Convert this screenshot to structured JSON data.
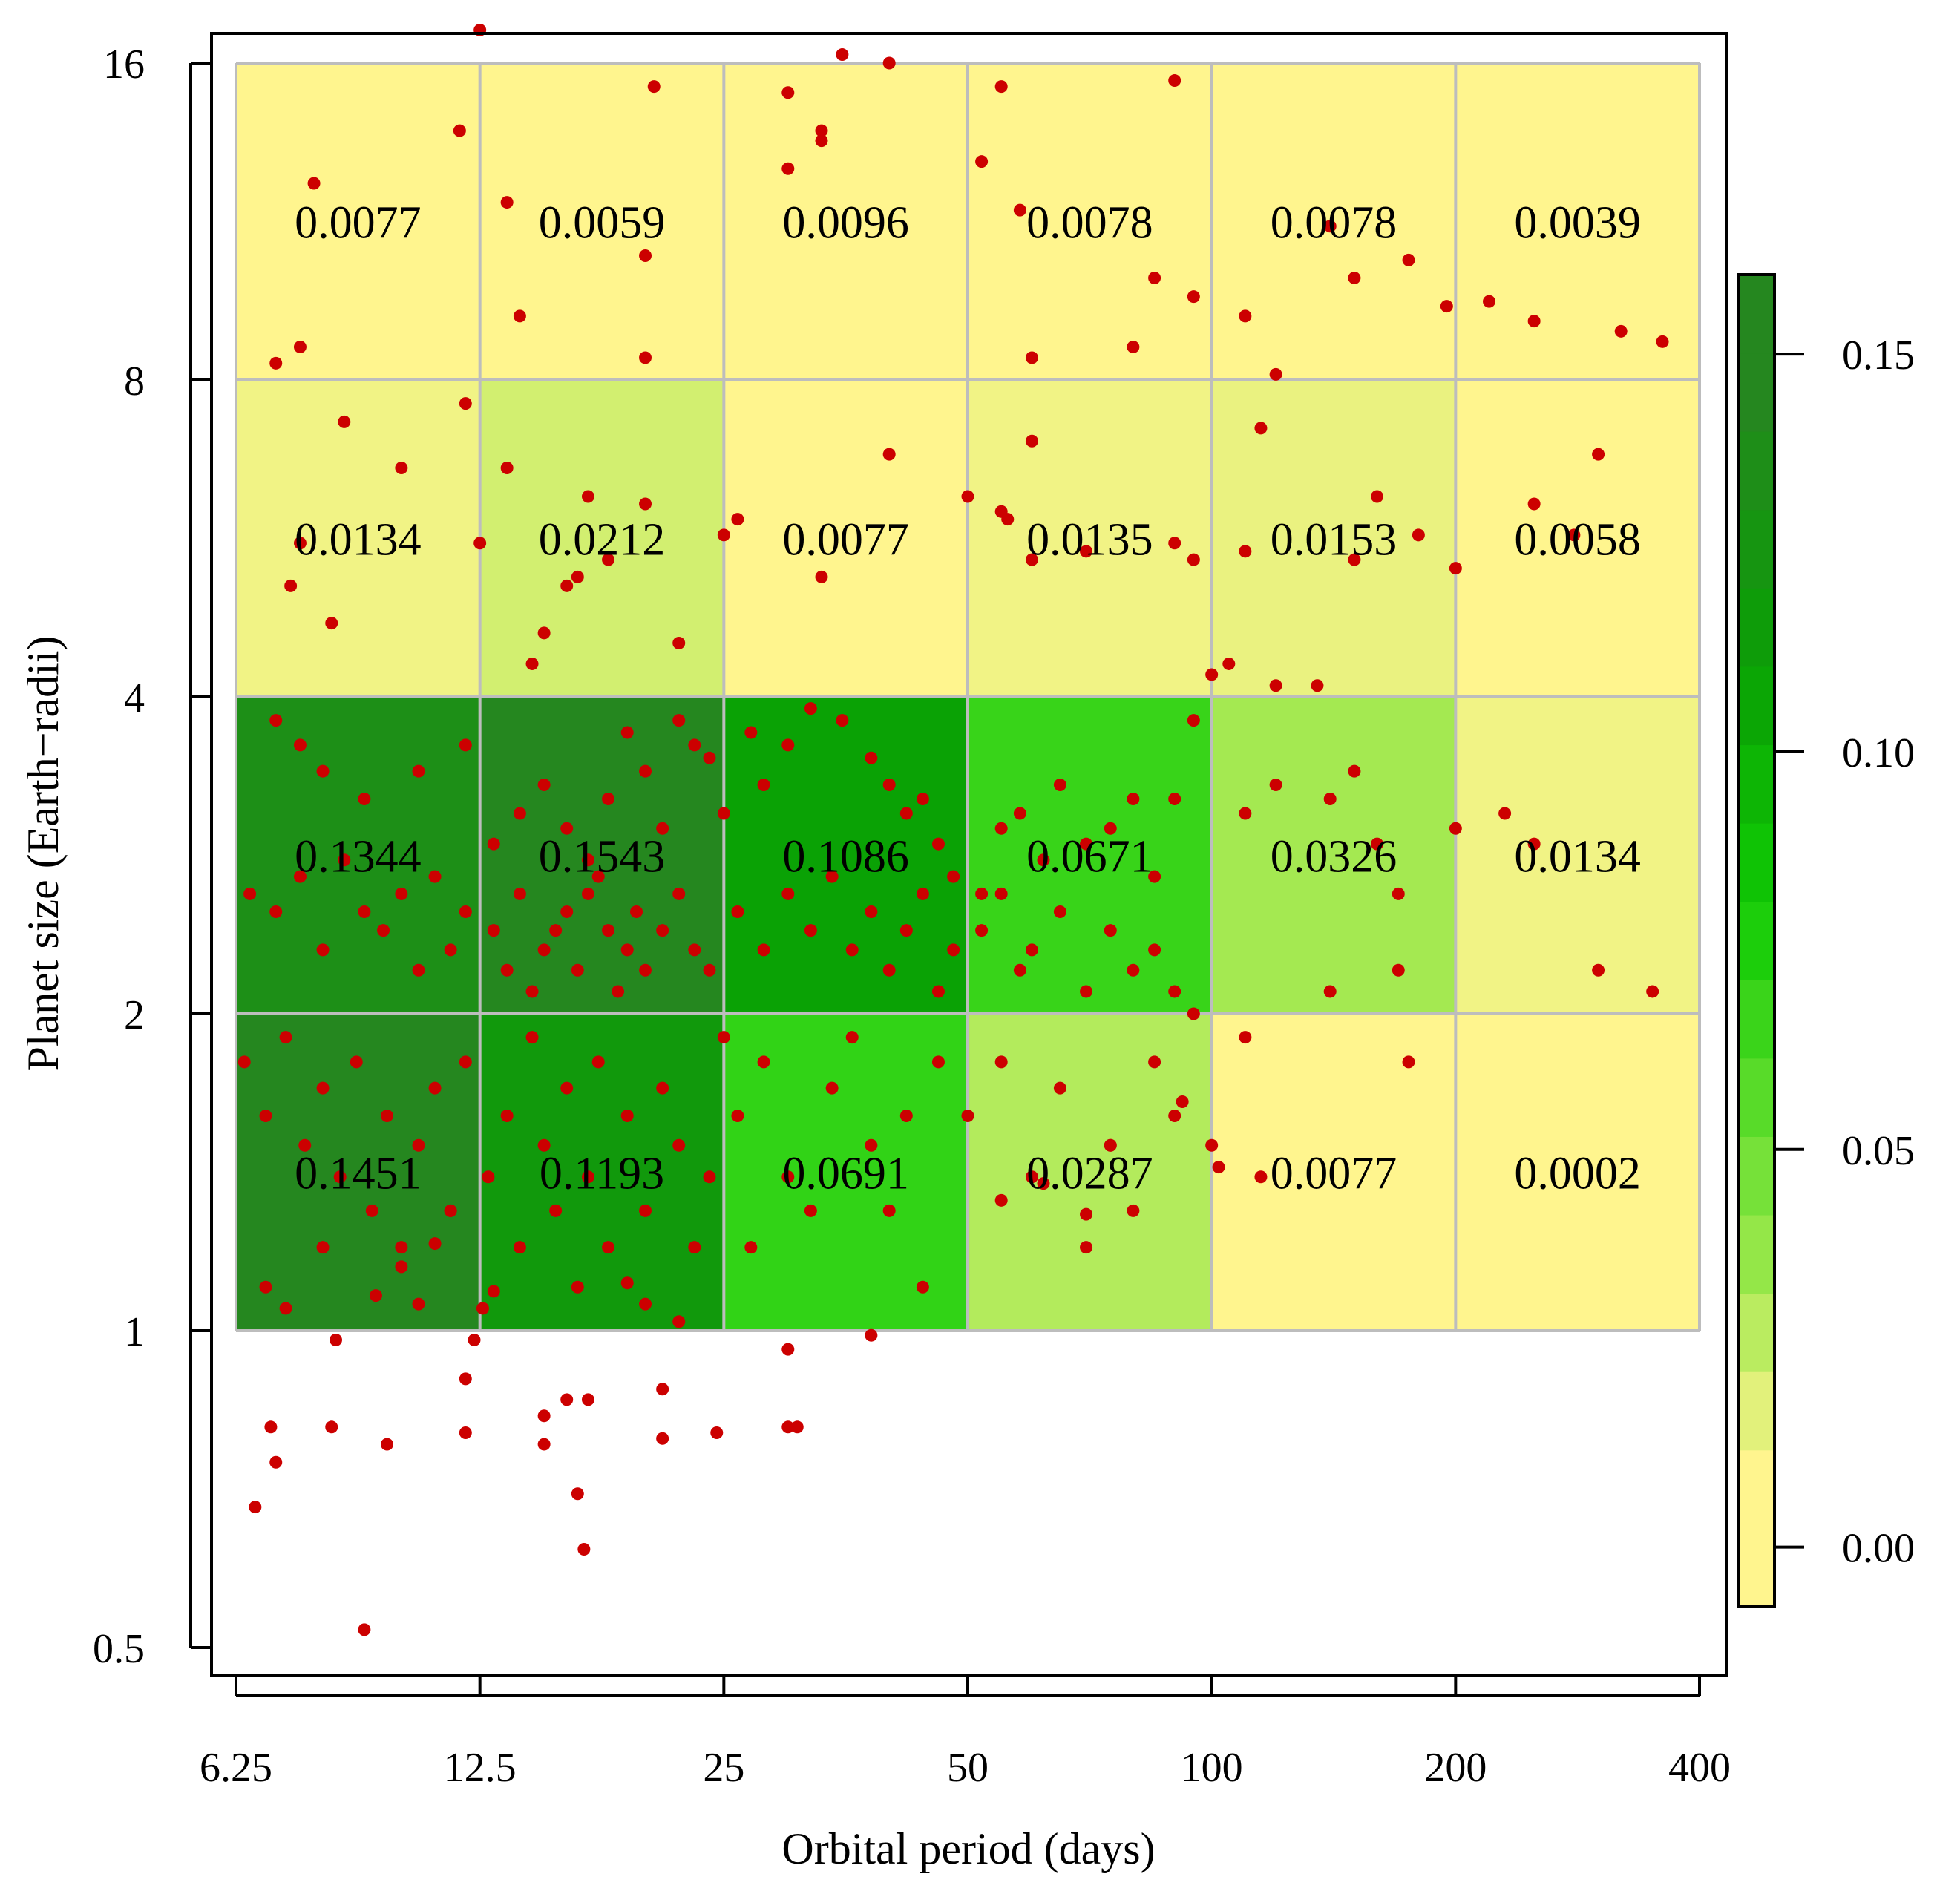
{
  "chart_data": {
    "type": "heatmap",
    "xlabel": "Orbital period (days)",
    "ylabel": "Planet size (Earth−radii)",
    "x_scale": "log2",
    "y_scale": "log2",
    "xlim": [
      6.25,
      400
    ],
    "ylim": [
      0.5,
      16
    ],
    "x_ticks": [
      "6.25",
      "12.5",
      "25",
      "50",
      "100",
      "200",
      "400"
    ],
    "y_ticks": [
      "0.5",
      "1",
      "2",
      "4",
      "8",
      "16"
    ],
    "x_tick_values": [
      6.25,
      12.5,
      25,
      50,
      100,
      200,
      400
    ],
    "y_tick_values": [
      0.5,
      1,
      2,
      4,
      8,
      16
    ],
    "x_bins": [
      6.25,
      12.5,
      25,
      50,
      100,
      200,
      400
    ],
    "y_bins": [
      1,
      2,
      4,
      8,
      16
    ],
    "cells_rows_top_to_bottom": [
      {
        "size_range": [
          8,
          16
        ],
        "values": [
          "0.0077",
          "0.0059",
          "0.0096",
          "0.0078",
          "0.0078",
          "0.0039"
        ]
      },
      {
        "size_range": [
          4,
          8
        ],
        "values": [
          "0.0134",
          "0.0212",
          "0.0077",
          "0.0135",
          "0.0153",
          "0.0058"
        ]
      },
      {
        "size_range": [
          2,
          4
        ],
        "values": [
          "0.1344",
          "0.1543",
          "0.1086",
          "0.0671",
          "0.0326",
          "0.0134"
        ]
      },
      {
        "size_range": [
          1,
          2
        ],
        "values": [
          "0.1451",
          "0.1193",
          "0.0691",
          "0.0287",
          "0.0077",
          "0.0002"
        ]
      }
    ],
    "colorbar": {
      "ticks": [
        "0.00",
        "0.05",
        "0.10",
        "0.15"
      ],
      "tick_values": [
        0,
        0.05,
        0.1,
        0.15
      ],
      "range": [
        -0.0075,
        0.16
      ],
      "levels": 17
    },
    "colors": {
      "scale_low": "#fff58e",
      "scale_mid": "#9ae84b",
      "scale_bright": "#10cc05",
      "scale_high": "#25871f",
      "grid": "#bdbdbd",
      "points": "#cc0000"
    },
    "scatter_points": [
      [
        13.5,
        11.8
      ],
      [
        20,
        8.4
      ],
      [
        20,
        10.5
      ],
      [
        40,
        16
      ],
      [
        30,
        12.7
      ],
      [
        30,
        15
      ],
      [
        35,
        16.3
      ],
      [
        33,
        13.5
      ],
      [
        12.5,
        17.2
      ],
      [
        11.8,
        13.8
      ],
      [
        7.8,
        12.3
      ],
      [
        7,
        8.3
      ],
      [
        7.5,
        8.6
      ],
      [
        14,
        9.2
      ],
      [
        20.5,
        15.2
      ],
      [
        33,
        13.8
      ],
      [
        55,
        15.2
      ],
      [
        52,
        12.9
      ],
      [
        90,
        15.4
      ],
      [
        85,
        10
      ],
      [
        80,
        8.6
      ],
      [
        60,
        8.4
      ],
      [
        58,
        11.6
      ],
      [
        95,
        9.6
      ],
      [
        110,
        9.2
      ],
      [
        120,
        8.1
      ],
      [
        115,
        7.2
      ],
      [
        140,
        11.2
      ],
      [
        150,
        10
      ],
      [
        175,
        10.4
      ],
      [
        195,
        9.4
      ],
      [
        220,
        9.5
      ],
      [
        250,
        9.1
      ],
      [
        320,
        8.9
      ],
      [
        360,
        8.7
      ],
      [
        8.5,
        7.3
      ],
      [
        10,
        6.6
      ],
      [
        12,
        7.6
      ],
      [
        13.5,
        6.6
      ],
      [
        17,
        6.2
      ],
      [
        20,
        6.1
      ],
      [
        22,
        4.5
      ],
      [
        16,
        5.1
      ],
      [
        15,
        4.6
      ],
      [
        14.5,
        4.3
      ],
      [
        16.5,
        5.2
      ],
      [
        18,
        5.4
      ],
      [
        12.5,
        5.6
      ],
      [
        7.3,
        5.1
      ],
      [
        8.2,
        4.7
      ],
      [
        7.5,
        5.6
      ],
      [
        25,
        5.7
      ],
      [
        26,
        5.9
      ],
      [
        33,
        5.2
      ],
      [
        40,
        6.8
      ],
      [
        50,
        6.2
      ],
      [
        55,
        6
      ],
      [
        60,
        5.4
      ],
      [
        56,
        5.9
      ],
      [
        70,
        5.5
      ],
      [
        90,
        5.6
      ],
      [
        95,
        5.4
      ],
      [
        100,
        4.2
      ],
      [
        105,
        4.3
      ],
      [
        120,
        4.1
      ],
      [
        135,
        4.1
      ],
      [
        150,
        5.4
      ],
      [
        160,
        6.2
      ],
      [
        180,
        5.7
      ],
      [
        200,
        5.3
      ],
      [
        250,
        6.1
      ],
      [
        300,
        6.8
      ],
      [
        280,
        5.7
      ],
      [
        60,
        7
      ],
      [
        110,
        5.5
      ],
      [
        7,
        3.8
      ],
      [
        7.5,
        3.6
      ],
      [
        8,
        3.4
      ],
      [
        9,
        3.2
      ],
      [
        10.5,
        3.4
      ],
      [
        12,
        3.6
      ],
      [
        13,
        2.9
      ],
      [
        14,
        3.1
      ],
      [
        15,
        3.3
      ],
      [
        16,
        3
      ],
      [
        17,
        2.8
      ],
      [
        18,
        3.2
      ],
      [
        19,
        3.7
      ],
      [
        20,
        3.4
      ],
      [
        21,
        3
      ],
      [
        22,
        3.8
      ],
      [
        23,
        3.6
      ],
      [
        24,
        3.5
      ],
      [
        25,
        3.1
      ],
      [
        27,
        3.7
      ],
      [
        28,
        3.3
      ],
      [
        30,
        3.6
      ],
      [
        32,
        3.9
      ],
      [
        35,
        3.8
      ],
      [
        38,
        3.5
      ],
      [
        40,
        3.3
      ],
      [
        42,
        3.1
      ],
      [
        44,
        3.2
      ],
      [
        46,
        2.9
      ],
      [
        48,
        2.7
      ],
      [
        52,
        2.6
      ],
      [
        55,
        3
      ],
      [
        58,
        3.1
      ],
      [
        62,
        2.8
      ],
      [
        65,
        3.3
      ],
      [
        70,
        2.9
      ],
      [
        75,
        3
      ],
      [
        80,
        3.2
      ],
      [
        85,
        2.7
      ],
      [
        90,
        3.2
      ],
      [
        95,
        3.8
      ],
      [
        110,
        3.1
      ],
      [
        120,
        3.3
      ],
      [
        140,
        3.2
      ],
      [
        150,
        3.4
      ],
      [
        160,
        2.9
      ],
      [
        170,
        2.6
      ],
      [
        200,
        3
      ],
      [
        230,
        3.1
      ],
      [
        250,
        2.9
      ],
      [
        300,
        2.2
      ],
      [
        350,
        2.1
      ],
      [
        6.5,
        2.6
      ],
      [
        7,
        2.5
      ],
      [
        7.5,
        2.7
      ],
      [
        8,
        2.3
      ],
      [
        8.5,
        2.8
      ],
      [
        9,
        2.5
      ],
      [
        9.5,
        2.4
      ],
      [
        10,
        2.6
      ],
      [
        10.5,
        2.2
      ],
      [
        11,
        2.7
      ],
      [
        11.5,
        2.3
      ],
      [
        12,
        2.5
      ],
      [
        13,
        2.4
      ],
      [
        13.5,
        2.2
      ],
      [
        14,
        2.6
      ],
      [
        14.5,
        2.1
      ],
      [
        15,
        2.3
      ],
      [
        15.5,
        2.4
      ],
      [
        16,
        2.5
      ],
      [
        16.5,
        2.2
      ],
      [
        17,
        2.6
      ],
      [
        17.5,
        2.7
      ],
      [
        18,
        2.4
      ],
      [
        18.5,
        2.1
      ],
      [
        19,
        2.3
      ],
      [
        19.5,
        2.5
      ],
      [
        20,
        2.2
      ],
      [
        21,
        2.4
      ],
      [
        22,
        2.6
      ],
      [
        23,
        2.3
      ],
      [
        24,
        2.2
      ],
      [
        26,
        2.5
      ],
      [
        28,
        2.3
      ],
      [
        30,
        2.6
      ],
      [
        32,
        2.4
      ],
      [
        34,
        2.7
      ],
      [
        36,
        2.3
      ],
      [
        38,
        2.5
      ],
      [
        40,
        2.2
      ],
      [
        42,
        2.4
      ],
      [
        44,
        2.6
      ],
      [
        46,
        2.1
      ],
      [
        48,
        2.3
      ],
      [
        52,
        2.4
      ],
      [
        55,
        2.6
      ],
      [
        58,
        2.2
      ],
      [
        60,
        2.3
      ],
      [
        65,
        2.5
      ],
      [
        70,
        2.1
      ],
      [
        75,
        2.4
      ],
      [
        80,
        2.2
      ],
      [
        85,
        2.3
      ],
      [
        90,
        2.1
      ],
      [
        95,
        2
      ],
      [
        140,
        2.1
      ],
      [
        170,
        2.2
      ],
      [
        6.4,
        1.8
      ],
      [
        6.8,
        1.6
      ],
      [
        7.2,
        1.9
      ],
      [
        7.6,
        1.5
      ],
      [
        8,
        1.7
      ],
      [
        8.4,
        1.4
      ],
      [
        8.8,
        1.8
      ],
      [
        9.2,
        1.3
      ],
      [
        9.6,
        1.6
      ],
      [
        10,
        1.2
      ],
      [
        10.5,
        1.5
      ],
      [
        11,
        1.7
      ],
      [
        11.5,
        1.3
      ],
      [
        12,
        1.8
      ],
      [
        12.8,
        1.4
      ],
      [
        13.5,
        1.6
      ],
      [
        14,
        1.2
      ],
      [
        14.5,
        1.9
      ],
      [
        15,
        1.5
      ],
      [
        15.5,
        1.3
      ],
      [
        16,
        1.7
      ],
      [
        16.5,
        1.1
      ],
      [
        17,
        1.4
      ],
      [
        17.5,
        1.8
      ],
      [
        18,
        1.2
      ],
      [
        19,
        1.6
      ],
      [
        20,
        1.3
      ],
      [
        21,
        1.7
      ],
      [
        22,
        1.5
      ],
      [
        23,
        1.2
      ],
      [
        24,
        1.4
      ],
      [
        25,
        1.9
      ],
      [
        26,
        1.6
      ],
      [
        27,
        1.2
      ],
      [
        28,
        1.8
      ],
      [
        30,
        1.4
      ],
      [
        32,
        1.3
      ],
      [
        34,
        1.7
      ],
      [
        36,
        1.9
      ],
      [
        38,
        1.5
      ],
      [
        40,
        1.3
      ],
      [
        42,
        1.6
      ],
      [
        44,
        1.1
      ],
      [
        46,
        1.8
      ],
      [
        50,
        1.6
      ],
      [
        55,
        1.8
      ],
      [
        60,
        1.4
      ],
      [
        65,
        1.7
      ],
      [
        70,
        1.2
      ],
      [
        75,
        1.5
      ],
      [
        80,
        1.3
      ],
      [
        85,
        1.8
      ],
      [
        90,
        1.6
      ],
      [
        100,
        1.5
      ],
      [
        110,
        1.9
      ],
      [
        115,
        1.4
      ],
      [
        175,
        1.8
      ],
      [
        6.8,
        1.1
      ],
      [
        7.2,
        1.05
      ],
      [
        8,
        1.2
      ],
      [
        9.3,
        1.08
      ],
      [
        10,
        1.15
      ],
      [
        11.5,
        1.3
      ],
      [
        12.6,
        1.05
      ],
      [
        12.3,
        0.98
      ],
      [
        8.3,
        0.98
      ],
      [
        12,
        0.9
      ],
      [
        12,
        0.8
      ],
      [
        15,
        0.83
      ],
      [
        15,
        0.78
      ],
      [
        16,
        0.86
      ],
      [
        16.5,
        0.7
      ],
      [
        16.8,
        0.62
      ],
      [
        17,
        0.86
      ],
      [
        21,
        0.88
      ],
      [
        21,
        0.79
      ],
      [
        24.5,
        0.8
      ],
      [
        30,
        0.81
      ],
      [
        30.8,
        0.81
      ],
      [
        30,
        0.96
      ],
      [
        7,
        0.75
      ],
      [
        6.6,
        0.68
      ],
      [
        6.9,
        0.81
      ],
      [
        8.2,
        0.81
      ],
      [
        9.6,
        0.78
      ],
      [
        9,
        0.52
      ],
      [
        10.5,
        1.06
      ],
      [
        11,
        1.21
      ],
      [
        13,
        1.09
      ],
      [
        19,
        1.11
      ],
      [
        20,
        1.06
      ],
      [
        22,
        1.02
      ],
      [
        38,
        0.99
      ],
      [
        55,
        1.33
      ],
      [
        62,
        1.38
      ],
      [
        70,
        1.29
      ],
      [
        75,
        1.5
      ],
      [
        92,
        1.65
      ],
      [
        102,
        1.43
      ]
    ]
  }
}
